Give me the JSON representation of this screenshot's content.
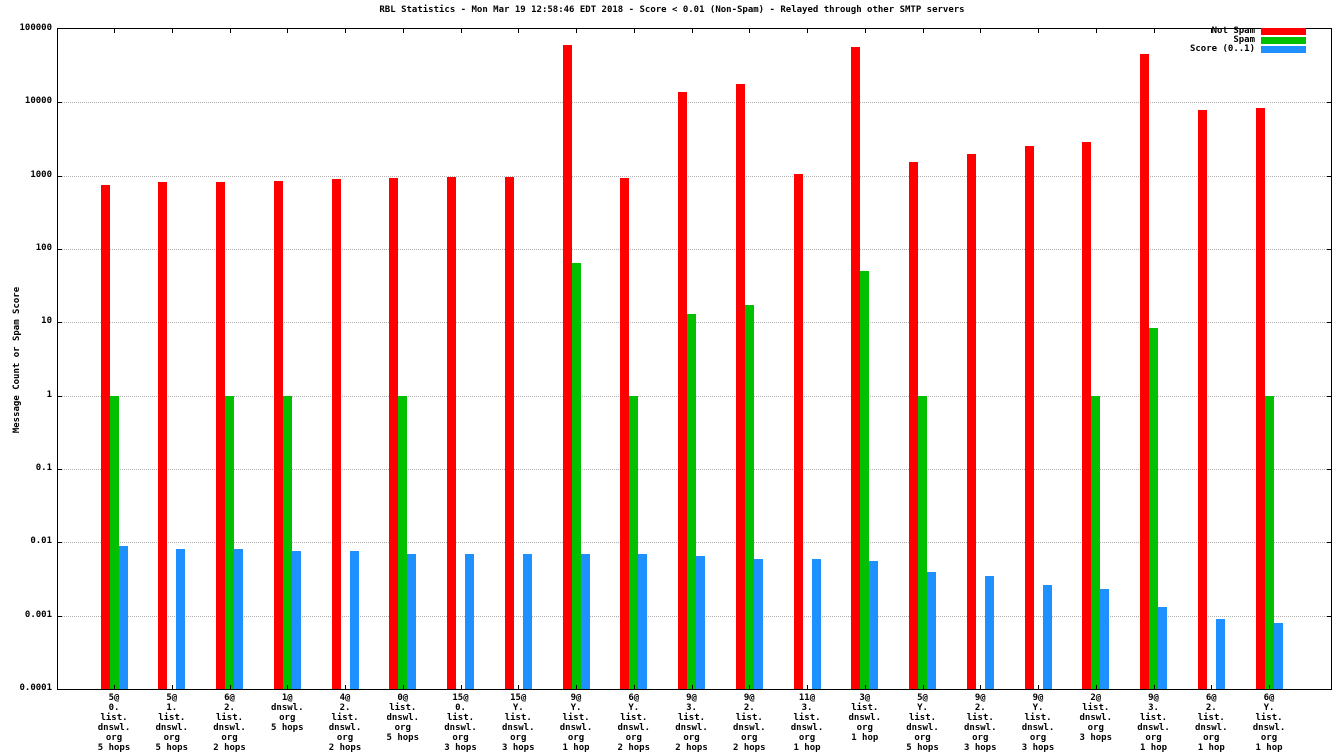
{
  "chart_data": {
    "type": "bar",
    "title": "RBL Statistics - Mon Mar 19 12:58:46 EDT 2018 - Score < 0.01 (Non-Spam) - Relayed through other SMTP servers",
    "ylabel": "Message Count or Spam Score",
    "xlabel": "",
    "yscale": "log",
    "ylim": [
      0.0001,
      100000
    ],
    "yticks": [
      100000,
      10000,
      1000,
      100,
      10,
      1,
      0.1,
      0.01,
      0.001,
      0.0001
    ],
    "ytick_labels": [
      "100000",
      "10000",
      "1000",
      "100",
      "10",
      "1",
      "0.1",
      "0.01",
      "0.001",
      "0.0001"
    ],
    "grid": true,
    "legend_position": "top-right",
    "categories": [
      [
        "5@",
        "0.",
        "list.",
        "dnswl.",
        "org",
        "5 hops"
      ],
      [
        "5@",
        "1.",
        "list.",
        "dnswl.",
        "org",
        "5 hops"
      ],
      [
        "6@",
        "2.",
        "list.",
        "dnswl.",
        "org",
        "2 hops"
      ],
      [
        "1@",
        "dnswl.",
        "org",
        "5 hops"
      ],
      [
        "4@",
        "2.",
        "list.",
        "dnswl.",
        "org",
        "2 hops"
      ],
      [
        "0@",
        "list.",
        "dnswl.",
        "org",
        "5 hops"
      ],
      [
        "15@",
        "0.",
        "list.",
        "dnswl.",
        "org",
        "3 hops"
      ],
      [
        "15@",
        "Y.",
        "list.",
        "dnswl.",
        "org",
        "3 hops"
      ],
      [
        "9@",
        "Y.",
        "list.",
        "dnswl.",
        "org",
        "1 hop"
      ],
      [
        "6@",
        "Y.",
        "list.",
        "dnswl.",
        "org",
        "2 hops"
      ],
      [
        "9@",
        "3.",
        "list.",
        "dnswl.",
        "org",
        "2 hops"
      ],
      [
        "9@",
        "2.",
        "list.",
        "dnswl.",
        "org",
        "2 hops"
      ],
      [
        "11@",
        "3.",
        "list.",
        "dnswl.",
        "org",
        "1 hop"
      ],
      [
        "3@",
        "list.",
        "dnswl.",
        "org",
        "1 hop"
      ],
      [
        "5@",
        "Y.",
        "list.",
        "dnswl.",
        "org",
        "5 hops"
      ],
      [
        "9@",
        "2.",
        "list.",
        "dnswl.",
        "org",
        "3 hops"
      ],
      [
        "9@",
        "Y.",
        "list.",
        "dnswl.",
        "org",
        "3 hops"
      ],
      [
        "2@",
        "list.",
        "dnswl.",
        "org",
        "3 hops"
      ],
      [
        "9@",
        "3.",
        "list.",
        "dnswl.",
        "org",
        "1 hop"
      ],
      [
        "6@",
        "2.",
        "list.",
        "dnswl.",
        "org",
        "1 hop"
      ],
      [
        "6@",
        "Y.",
        "list.",
        "dnswl.",
        "org",
        "1 hop"
      ]
    ],
    "series": [
      {
        "name": "Not Spam",
        "color": "#ff0000",
        "values": [
          750,
          820,
          820,
          850,
          900,
          930,
          950,
          950,
          60000,
          930,
          14000,
          18000,
          1050,
          57000,
          1550,
          1950,
          2500,
          2850,
          46000,
          7800,
          8500
        ]
      },
      {
        "name": "Spam",
        "color": "#00c000",
        "values": [
          1,
          null,
          1,
          1,
          null,
          1,
          null,
          null,
          65,
          1,
          13,
          17,
          null,
          50,
          1,
          null,
          null,
          1,
          8.5,
          null,
          1
        ]
      },
      {
        "name": "Score (0..1)",
        "color": "#1e90ff",
        "values": [
          0.009,
          0.008,
          0.008,
          0.0075,
          0.0075,
          0.007,
          0.007,
          0.007,
          0.007,
          0.007,
          0.0065,
          0.006,
          0.006,
          0.0055,
          0.004,
          0.0035,
          0.0026,
          0.0023,
          0.0013,
          0.0009,
          0.0008
        ]
      }
    ]
  }
}
